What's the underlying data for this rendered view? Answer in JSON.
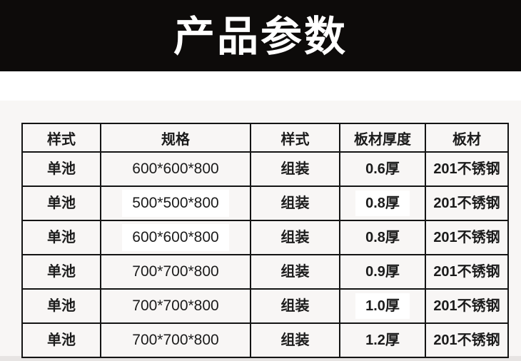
{
  "page": {
    "background": "#ffffff",
    "panel_background": "#f8f6f5",
    "footer_strip_color": "#e7e4e3"
  },
  "banner": {
    "title": "产品参数",
    "background": "#0d0b0a",
    "text_color": "#ffffff"
  },
  "table": {
    "border_color": "#141414",
    "columns": [
      "样式",
      "规格",
      "样式",
      "板材厚度",
      "板材"
    ],
    "rows": [
      [
        "单池",
        "600*600*800",
        "组装",
        "0.6厚",
        "201不锈钢"
      ],
      [
        "单池",
        "500*500*800",
        "组装",
        "0.8厚",
        "201不锈钢"
      ],
      [
        "单池",
        "600*600*800",
        "组装",
        "0.8厚",
        "201不锈钢"
      ],
      [
        "单池",
        "700*700*800",
        "组装",
        "0.9厚",
        "201不锈钢"
      ],
      [
        "单池",
        "700*700*800",
        "组装",
        "1.0厚",
        "201不锈钢"
      ],
      [
        "单池",
        "700*700*800",
        "组装",
        "1.2厚",
        "201不锈钢"
      ]
    ],
    "highlighted_cells": [
      [
        1,
        1
      ],
      [
        1,
        3
      ],
      [
        2,
        1
      ],
      [
        4,
        3
      ]
    ]
  }
}
